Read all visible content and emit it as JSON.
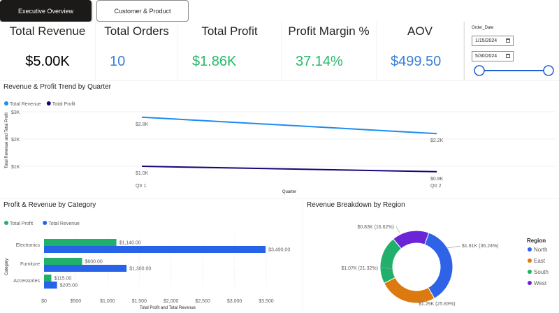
{
  "tabs": [
    {
      "label": "Executive Overview",
      "active": true
    },
    {
      "label": "Customer & Product",
      "active": false
    }
  ],
  "kpis": [
    {
      "title": "Total Revenue",
      "value": "$5.00K",
      "color": "#000000"
    },
    {
      "title": "Total Orders",
      "value": "10",
      "color": "#3a7fd5"
    },
    {
      "title": "Total Profit",
      "value": "$1.86K",
      "color": "#27b869"
    },
    {
      "title": "Profit Margin %",
      "value": "37.14%",
      "color": "#27b869"
    },
    {
      "title": "AOV",
      "value": "$499.50",
      "color": "#3a7fd5"
    }
  ],
  "slicer": {
    "label": "Order_Date",
    "start": "1/15/2024",
    "end": "5/30/2024",
    "icon": "calendar-icon"
  },
  "trend_chart": {
    "title": "Revenue & Profit Trend by Quarter",
    "legend": [
      {
        "name": "Total Revenue",
        "color": "#1d8cf0"
      },
      {
        "name": "Total Profit",
        "color": "#14067a"
      }
    ],
    "ylabel": "Total Revenue and Total Profit",
    "xlabel": "Quarter",
    "y_ticks": [
      "$1K",
      "$2K",
      "$3K"
    ]
  },
  "category_chart": {
    "title": "Profit & Revenue by Category",
    "legend": [
      {
        "name": "Total Profit",
        "color": "#20b06b"
      },
      {
        "name": "Total Revenue",
        "color": "#2763e8"
      }
    ],
    "ylabel": "Category",
    "xlabel": "Total Profit and Total Revenue",
    "x_ticks": [
      "$0",
      "$500",
      "$1,000",
      "$1,500",
      "$2,000",
      "$2,500",
      "$3,000",
      "$3,500"
    ]
  },
  "region_chart": {
    "title": "Revenue Breakdown by Region",
    "legend_title": "Region"
  },
  "chart_data": [
    {
      "type": "line",
      "title": "Revenue & Profit Trend by Quarter",
      "x": [
        "Qtr 1",
        "Qtr 2"
      ],
      "series": [
        {
          "name": "Total Revenue",
          "values": [
            2800,
            2200
          ],
          "labels": [
            "$2.8K",
            "$2.2K"
          ]
        },
        {
          "name": "Total Profit",
          "values": [
            1000,
            800
          ],
          "labels": [
            "$1.0K",
            "$0.8K"
          ]
        }
      ],
      "xlabel": "Quarter",
      "ylabel": "Total Revenue and Total Profit",
      "ylim": [
        500,
        3000
      ],
      "legend": "top-left"
    },
    {
      "type": "bar",
      "orientation": "horizontal",
      "title": "Profit & Revenue by Category",
      "categories": [
        "Electronics",
        "Furniture",
        "Accessories"
      ],
      "series": [
        {
          "name": "Total Profit",
          "values": [
            1140,
            600,
            115
          ],
          "labels": [
            "$1,140.00",
            "$600.00",
            "$115.00"
          ]
        },
        {
          "name": "Total Revenue",
          "values": [
            3490,
            1300,
            205
          ],
          "labels": [
            "$3,490.00",
            "$1,300.00",
            "$205.00"
          ]
        }
      ],
      "xlabel": "Total Profit and Total Revenue",
      "ylabel": "Category",
      "xlim": [
        0,
        3500
      ],
      "legend": "top-left"
    },
    {
      "type": "pie",
      "title": "Revenue Breakdown by Region",
      "categories": [
        "North",
        "East",
        "South",
        "West"
      ],
      "values": [
        1.81,
        1.29,
        1.07,
        0.83
      ],
      "labels": [
        "$1.81K (36.24%)",
        "$1.29K (25.83%)",
        "$1.07K (21.32%)",
        "$0.83K (16.62%)"
      ],
      "colors": [
        "#2e63e8",
        "#dd7a0f",
        "#20b06b",
        "#6b24d6"
      ],
      "legend": "right"
    }
  ]
}
